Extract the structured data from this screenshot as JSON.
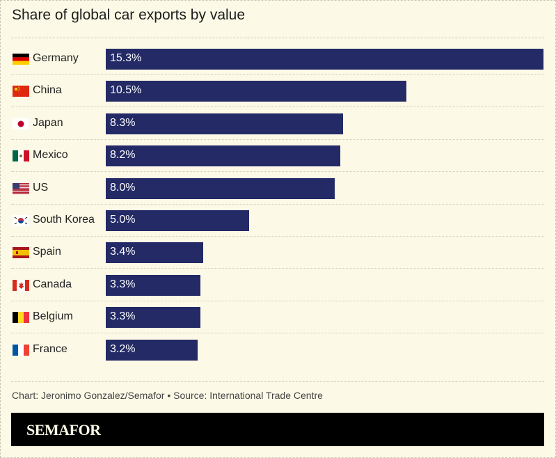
{
  "chart_data": {
    "type": "bar",
    "orientation": "horizontal",
    "title": "Share of global car exports by value",
    "categories": [
      "Germany",
      "China",
      "Japan",
      "Mexico",
      "US",
      "South Korea",
      "Spain",
      "Canada",
      "Belgium",
      "France"
    ],
    "values": [
      15.3,
      10.5,
      8.3,
      8.2,
      8.0,
      5.0,
      3.4,
      3.3,
      3.3,
      3.2
    ],
    "labels": [
      "15.3%",
      "10.5%",
      "8.3%",
      "8.2%",
      "8.0%",
      "5.0%",
      "3.4%",
      "3.3%",
      "3.3%",
      "3.2%"
    ],
    "flags": [
      "germany-flag",
      "china-flag",
      "japan-flag",
      "mexico-flag",
      "us-flag",
      "south-korea-flag",
      "spain-flag",
      "canada-flag",
      "belgium-flag",
      "france-flag"
    ],
    "unit": "%",
    "bar_color": "#232a66",
    "background_color": "#fcf9e6",
    "grid": false
  },
  "credit": "Chart: Jeronimo Gonzalez/Semafor • Source: International Trade Centre",
  "logo": "SEMAFOR"
}
